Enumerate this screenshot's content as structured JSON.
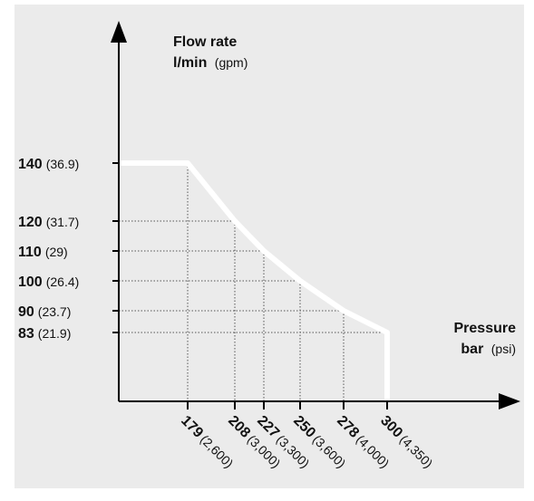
{
  "chart_data": {
    "type": "line",
    "title": "",
    "ylabel": {
      "main": "Flow rate",
      "unit_primary": "l/min",
      "unit_secondary": "(gpm)"
    },
    "xlabel": {
      "main": "Pressure",
      "unit_primary": "bar",
      "unit_secondary": "(psi)"
    },
    "x_ticks": [
      {
        "primary": "179",
        "secondary": "(2,600)"
      },
      {
        "primary": "208",
        "secondary": "(3,000)"
      },
      {
        "primary": "227",
        "secondary": "(3,300)"
      },
      {
        "primary": "250",
        "secondary": "(3,600)"
      },
      {
        "primary": "278",
        "secondary": "(4,000)"
      },
      {
        "primary": "300",
        "secondary": "(4,350)"
      }
    ],
    "y_ticks": [
      {
        "primary": "140",
        "secondary": "(36.9)"
      },
      {
        "primary": "120",
        "secondary": "(31.7)"
      },
      {
        "primary": "110",
        "secondary": "(29)"
      },
      {
        "primary": "100",
        "secondary": "(26.4)"
      },
      {
        "primary": "90",
        "secondary": "(23.7)"
      },
      {
        "primary": "83",
        "secondary": "(21.9)"
      }
    ],
    "series": [
      {
        "points": [
          {
            "x": 0,
            "y": 140
          },
          {
            "x": 179,
            "y": 140
          },
          {
            "x": 208,
            "y": 120
          },
          {
            "x": 227,
            "y": 110
          },
          {
            "x": 250,
            "y": 100
          },
          {
            "x": 278,
            "y": 90
          },
          {
            "x": 300,
            "y": 83
          },
          {
            "x": 300,
            "y": 0
          }
        ]
      }
    ],
    "guides": "dotted lines at each tick value",
    "colors": {
      "background": "#ffffff",
      "plot_background": "#ebebeb",
      "curve": "#ffffff",
      "axes": "#000000",
      "guides": "#555555"
    }
  }
}
